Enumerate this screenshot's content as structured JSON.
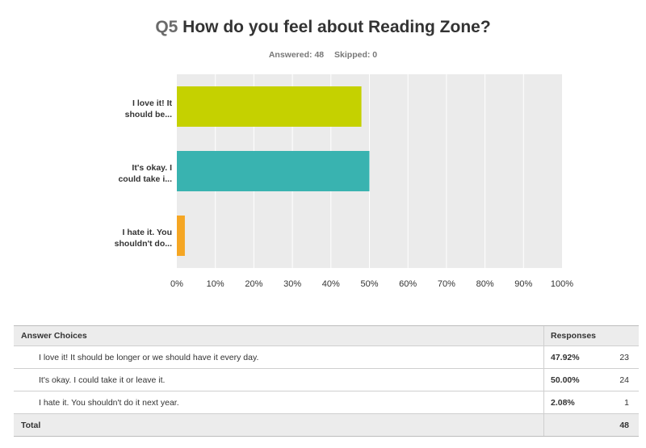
{
  "question": {
    "number": "Q5",
    "text": "How do you feel about Reading Zone?",
    "answered": "Answered: 48",
    "skipped": "Skipped: 0"
  },
  "chart_data": {
    "type": "bar",
    "orientation": "horizontal",
    "categories": [
      "I love it! It should be...",
      "It's okay. I could take i...",
      "I hate it. You shouldn't do..."
    ],
    "category_lines": [
      [
        "I love it! It",
        "should be..."
      ],
      [
        "It's okay. I",
        "could take i..."
      ],
      [
        "I hate it. You",
        "shouldn't do..."
      ]
    ],
    "values": [
      47.92,
      50.0,
      2.08
    ],
    "colors": [
      "#c5d100",
      "#39b3b0",
      "#f5a623"
    ],
    "xlim": [
      0,
      100
    ],
    "xticks": [
      "0%",
      "10%",
      "20%",
      "30%",
      "40%",
      "50%",
      "60%",
      "70%",
      "80%",
      "90%",
      "100%"
    ],
    "grid": true,
    "plot_background": "#ebebeb"
  },
  "table": {
    "headers": [
      "Answer Choices",
      "Responses"
    ],
    "rows": [
      {
        "choice": "I love it! It should be longer or we should have it every day.",
        "pct": "47.92%",
        "count": "23"
      },
      {
        "choice": "It's okay. I could take it or leave it.",
        "pct": "50.00%",
        "count": "24"
      },
      {
        "choice": "I hate it. You shouldn't do it next year.",
        "pct": "2.08%",
        "count": "1"
      }
    ],
    "total_label": "Total",
    "total": "48"
  }
}
